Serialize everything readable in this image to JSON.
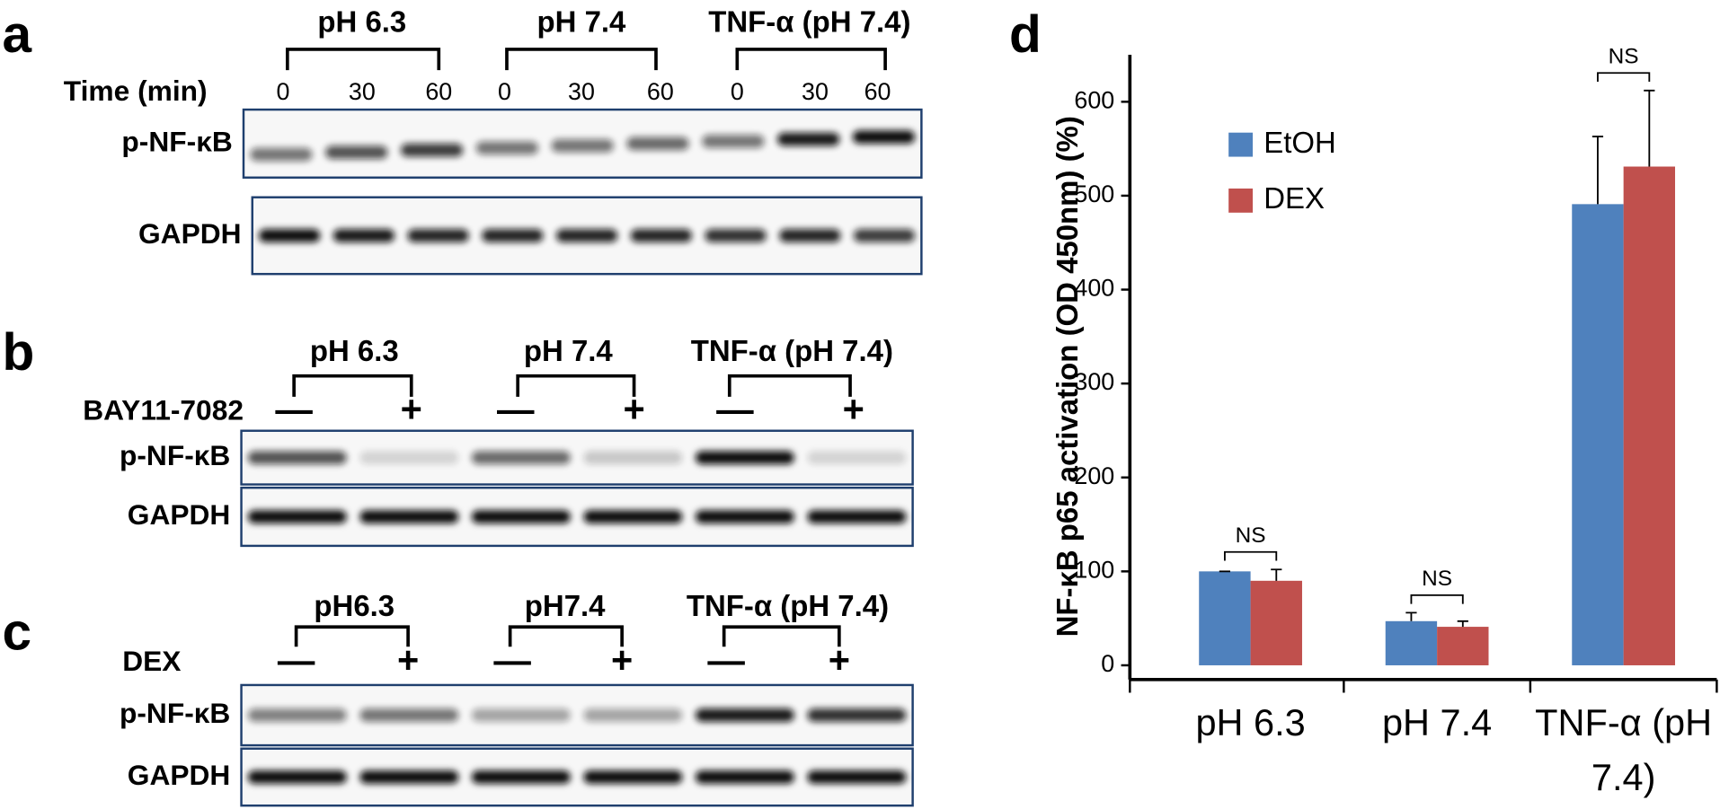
{
  "panels": [
    {
      "label": "a",
      "groups": [
        "pH 6.3",
        "pH 7.4",
        "TNF-α (pH 7.4)"
      ],
      "row_label": "Time (min)",
      "lanes": [
        "0",
        "30",
        "60",
        "0",
        "30",
        "60",
        "0",
        "30",
        "60"
      ],
      "blots": [
        "p-NF-κB",
        "GAPDH"
      ]
    },
    {
      "label": "b",
      "groups": [
        "pH 6.3",
        "pH 7.4",
        "TNF-α (pH 7.4)"
      ],
      "row_label": "BAY11-7082",
      "lanes": [
        "—",
        "+",
        "—",
        "+",
        "—",
        "+"
      ],
      "blots": [
        "p-NF-κB",
        "GAPDH"
      ]
    },
    {
      "label": "c",
      "groups": [
        "pH6.3",
        "pH7.4",
        "TNF-α (pH 7.4)"
      ],
      "row_label": "DEX",
      "lanes": [
        "—",
        "+",
        "—",
        "+",
        "—",
        "+"
      ],
      "blots": [
        "p-NF-κB",
        "GAPDH"
      ]
    }
  ],
  "chart_data": {
    "type": "bar",
    "label": "d",
    "ylabel": "NF-κB p65 activation (OD 450nm) (%)",
    "categories": [
      "pH 6.3",
      "pH 7.4",
      "TNF-α (pH 7.4)"
    ],
    "series": [
      {
        "name": "EtOH",
        "color": "#4f81bd",
        "values": [
          100,
          47,
          491
        ],
        "errors": [
          0,
          9,
          72
        ]
      },
      {
        "name": "DEX",
        "color": "#c0504d",
        "values": [
          90,
          41,
          531
        ],
        "errors": [
          12,
          6,
          81
        ]
      }
    ],
    "significance": [
      "NS",
      "NS",
      "NS"
    ],
    "ylim": [
      0,
      650
    ],
    "yticks": [
      0,
      100,
      200,
      300,
      400,
      500,
      600
    ],
    "grid": false
  }
}
